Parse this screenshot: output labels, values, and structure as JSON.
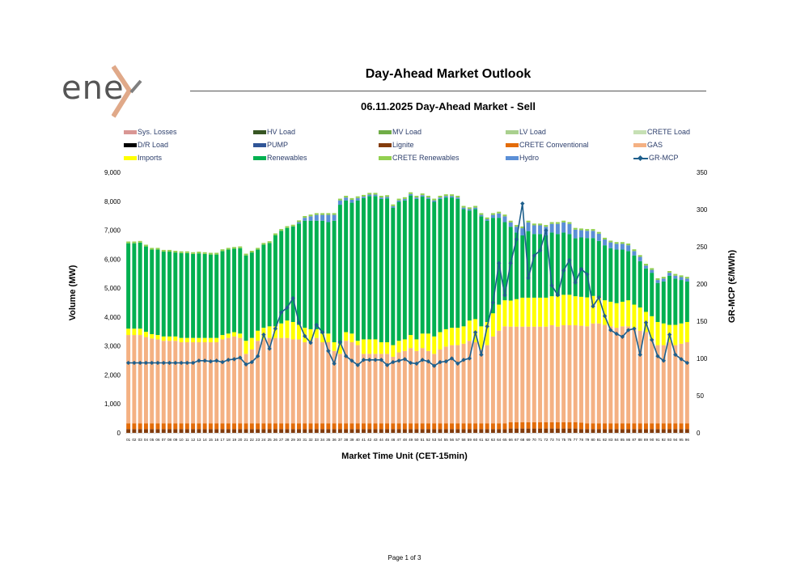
{
  "header": {
    "title": "Day-Ahead Market Outlook",
    "subtitle": "06.11.2025  Day-Ahead Market - Sell",
    "logo_text": "ene"
  },
  "footer": {
    "page": "Page 1 of 3"
  },
  "colors": {
    "losses": "#d99694",
    "hv": "#375623",
    "mv": "#70ad47",
    "lv": "#a9d08e",
    "crete_load": "#c6e0b4",
    "dr": "#000000",
    "pump": "#2f5597",
    "lignite": "#843c0c",
    "crete_conv": "#e36c09",
    "gas": "#f4b183",
    "imports": "#ffff00",
    "renewables": "#00b050",
    "crete_ren": "#92d050",
    "hydro": "#5b8fd6",
    "mcp": "#1e5f8c"
  },
  "legend": [
    {
      "label": "Sys. Losses",
      "key": "losses"
    },
    {
      "label": "HV Load",
      "key": "hv"
    },
    {
      "label": "MV Load",
      "key": "mv"
    },
    {
      "label": "LV Load",
      "key": "lv"
    },
    {
      "label": "CRETE Load",
      "key": "crete_load"
    },
    {
      "label": "D/R Load",
      "key": "dr"
    },
    {
      "label": "PUMP",
      "key": "pump"
    },
    {
      "label": "Lignite",
      "key": "lignite"
    },
    {
      "label": "CRETE Conventional",
      "key": "crete_conv"
    },
    {
      "label": "GAS",
      "key": "gas"
    },
    {
      "label": "Imports",
      "key": "imports"
    },
    {
      "label": "Renewables",
      "key": "renewables"
    },
    {
      "label": "CRETE Renewables",
      "key": "crete_ren"
    },
    {
      "label": "Hydro",
      "key": "hydro"
    },
    {
      "label": "GR-MCP",
      "key": "mcp",
      "line": true
    }
  ],
  "chart_data": {
    "type": "bar",
    "xlabel": "Market Time Unit (CET-15min)",
    "ylabel": "Volume (MW)",
    "y2label": "GR-MCP (€/MWh)",
    "ylim": [
      0,
      9000
    ],
    "y2lim": [
      0,
      350
    ],
    "yticks": [
      "0",
      "1,000",
      "2,000",
      "3,000",
      "4,000",
      "5,000",
      "6,000",
      "7,000",
      "8,000",
      "9,000"
    ],
    "y2ticks": [
      "0",
      "50",
      "100",
      "150",
      "200",
      "250",
      "300",
      "350"
    ],
    "grid": false,
    "legend_position": "top",
    "categories": [
      "01",
      "02",
      "03",
      "04",
      "05",
      "06",
      "07",
      "08",
      "09",
      "10",
      "11",
      "12",
      "13",
      "14",
      "15",
      "16",
      "17",
      "18",
      "19",
      "20",
      "21",
      "22",
      "23",
      "24",
      "25",
      "26",
      "27",
      "28",
      "29",
      "30",
      "31",
      "32",
      "33",
      "34",
      "35",
      "36",
      "37",
      "38",
      "39",
      "40",
      "41",
      "42",
      "43",
      "44",
      "45",
      "46",
      "47",
      "48",
      "49",
      "50",
      "51",
      "52",
      "53",
      "54",
      "55",
      "56",
      "57",
      "58",
      "59",
      "60",
      "61",
      "62",
      "63",
      "64",
      "65",
      "66",
      "67",
      "68",
      "69",
      "70",
      "71",
      "72",
      "73",
      "74",
      "75",
      "76",
      "77",
      "78",
      "79",
      "80",
      "81",
      "82",
      "83",
      "84",
      "85",
      "86",
      "87",
      "88",
      "89",
      "90",
      "91",
      "92",
      "93",
      "94",
      "95",
      "96"
    ],
    "series": [
      {
        "name": "Lignite",
        "stack": true,
        "values": [
          130,
          130,
          130,
          130,
          130,
          130,
          130,
          130,
          130,
          130,
          130,
          130,
          130,
          130,
          130,
          130,
          130,
          130,
          130,
          130,
          130,
          130,
          130,
          130,
          130,
          130,
          130,
          130,
          130,
          130,
          130,
          130,
          130,
          130,
          130,
          130,
          130,
          130,
          130,
          130,
          130,
          130,
          130,
          130,
          130,
          130,
          130,
          130,
          130,
          130,
          130,
          130,
          130,
          130,
          130,
          130,
          130,
          130,
          130,
          130,
          130,
          130,
          130,
          130,
          130,
          150,
          150,
          150,
          150,
          150,
          150,
          150,
          150,
          150,
          150,
          150,
          150,
          130,
          130,
          130,
          130,
          130,
          130,
          130,
          130,
          130,
          130,
          130,
          130,
          130,
          130,
          130,
          130,
          130,
          130,
          130
        ]
      },
      {
        "name": "CRETE Conventional",
        "stack": true,
        "values": [
          200,
          200,
          200,
          200,
          200,
          200,
          200,
          200,
          200,
          200,
          200,
          200,
          200,
          200,
          200,
          200,
          200,
          200,
          200,
          200,
          200,
          200,
          200,
          200,
          200,
          200,
          200,
          200,
          200,
          200,
          200,
          200,
          200,
          200,
          200,
          200,
          200,
          200,
          200,
          200,
          200,
          200,
          200,
          200,
          200,
          200,
          200,
          200,
          200,
          200,
          200,
          200,
          200,
          200,
          200,
          200,
          200,
          200,
          200,
          200,
          200,
          200,
          200,
          200,
          200,
          220,
          220,
          220,
          220,
          220,
          220,
          220,
          220,
          220,
          220,
          220,
          220,
          220,
          200,
          200,
          200,
          200,
          200,
          200,
          200,
          200,
          200,
          200,
          200,
          200,
          200,
          200,
          200,
          200,
          200,
          200
        ]
      },
      {
        "name": "GAS",
        "stack": true,
        "values": [
          3050,
          3050,
          3050,
          2980,
          2930,
          2900,
          2850,
          2850,
          2850,
          2800,
          2800,
          2800,
          2800,
          2800,
          2800,
          2800,
          2900,
          2950,
          3000,
          2950,
          2400,
          2550,
          2850,
          2900,
          2950,
          2950,
          2950,
          2950,
          2900,
          2900,
          2800,
          2850,
          2950,
          2800,
          2800,
          2500,
          2400,
          2850,
          2800,
          2700,
          2400,
          2400,
          2400,
          2400,
          2400,
          2300,
          2450,
          2500,
          2600,
          2500,
          2600,
          2500,
          2400,
          2550,
          2650,
          2700,
          2700,
          2750,
          2850,
          2800,
          2550,
          2700,
          3000,
          3200,
          3350,
          3300,
          3300,
          3300,
          3300,
          3300,
          3300,
          3300,
          3350,
          3300,
          3350,
          3350,
          3350,
          3350,
          3350,
          3450,
          3450,
          3400,
          3350,
          3300,
          3350,
          3350,
          3300,
          3200,
          3150,
          2900,
          2700,
          2700,
          2800,
          2700,
          2750,
          2800
        ]
      },
      {
        "name": "Imports",
        "stack": true,
        "values": [
          220,
          220,
          220,
          180,
          150,
          150,
          150,
          150,
          150,
          150,
          150,
          150,
          150,
          150,
          150,
          150,
          150,
          150,
          150,
          150,
          450,
          400,
          350,
          400,
          400,
          400,
          500,
          600,
          600,
          500,
          500,
          400,
          300,
          300,
          300,
          300,
          350,
          300,
          300,
          150,
          500,
          500,
          500,
          400,
          400,
          400,
          400,
          400,
          450,
          400,
          500,
          600,
          600,
          600,
          600,
          600,
          600,
          600,
          700,
          800,
          800,
          800,
          800,
          900,
          900,
          900,
          950,
          1000,
          1000,
          1000,
          1000,
          1000,
          1000,
          1050,
          1050,
          1050,
          1000,
          1000,
          1000,
          950,
          900,
          850,
          850,
          850,
          850,
          900,
          800,
          800,
          700,
          800,
          800,
          750,
          600,
          700,
          700,
          700
        ]
      },
      {
        "name": "Renewables",
        "stack": true,
        "values": [
          2950,
          2950,
          2970,
          2950,
          2920,
          2950,
          2930,
          2930,
          2900,
          2930,
          2930,
          2900,
          2920,
          2900,
          2880,
          2880,
          2900,
          2900,
          2880,
          2950,
          2950,
          2950,
          2800,
          2870,
          2880,
          3150,
          3200,
          3200,
          3300,
          3500,
          3700,
          3750,
          3750,
          3900,
          3850,
          4200,
          4800,
          4550,
          4520,
          4850,
          4880,
          4950,
          4950,
          4950,
          4970,
          4750,
          4800,
          4800,
          4820,
          4850,
          4730,
          4650,
          4650,
          4600,
          4550,
          4500,
          4450,
          4050,
          3800,
          3800,
          3800,
          3500,
          3300,
          3000,
          2700,
          2550,
          2300,
          2150,
          2300,
          2200,
          2200,
          2150,
          2200,
          2150,
          2150,
          2100,
          2000,
          2050,
          2050,
          2000,
          1950,
          1900,
          1850,
          1850,
          1800,
          1700,
          1700,
          1600,
          1500,
          1500,
          1350,
          1450,
          1700,
          1600,
          1500,
          1400
        ]
      },
      {
        "name": "Hydro",
        "stack": true,
        "values": [
          0,
          0,
          0,
          0,
          0,
          0,
          0,
          0,
          0,
          0,
          0,
          0,
          0,
          0,
          0,
          0,
          0,
          0,
          0,
          0,
          0,
          0,
          0,
          0,
          0,
          0,
          0,
          0,
          0,
          50,
          100,
          150,
          200,
          200,
          250,
          200,
          150,
          100,
          100,
          80,
          50,
          50,
          50,
          50,
          50,
          50,
          50,
          50,
          50,
          50,
          50,
          50,
          50,
          50,
          50,
          50,
          50,
          50,
          50,
          50,
          50,
          50,
          100,
          150,
          200,
          150,
          200,
          250,
          300,
          300,
          300,
          300,
          300,
          350,
          350,
          350,
          300,
          250,
          250,
          250,
          250,
          200,
          200,
          200,
          200,
          200,
          150,
          150,
          100,
          100,
          100,
          100,
          100,
          100,
          100,
          100
        ]
      },
      {
        "name": "CRETE Renewables",
        "stack": true,
        "values": [
          60,
          60,
          60,
          60,
          60,
          60,
          60,
          60,
          60,
          60,
          60,
          60,
          60,
          60,
          60,
          60,
          60,
          60,
          60,
          60,
          60,
          60,
          60,
          60,
          60,
          60,
          60,
          60,
          60,
          60,
          60,
          60,
          60,
          60,
          60,
          60,
          60,
          60,
          60,
          60,
          60,
          60,
          60,
          60,
          60,
          60,
          60,
          60,
          60,
          60,
          60,
          60,
          60,
          60,
          60,
          60,
          60,
          60,
          60,
          60,
          60,
          60,
          60,
          60,
          60,
          60,
          60,
          60,
          60,
          60,
          60,
          60,
          60,
          60,
          60,
          60,
          60,
          60,
          60,
          60,
          60,
          60,
          60,
          60,
          60,
          60,
          60,
          60,
          60,
          60,
          60,
          60,
          60,
          60,
          60,
          60
        ]
      },
      {
        "name": "GR-MCP",
        "axis": "y2",
        "line": true,
        "values": [
          94,
          94,
          94,
          94,
          94,
          94,
          94,
          94,
          94,
          94,
          94,
          94,
          97,
          97,
          96,
          97,
          95,
          98,
          99,
          101,
          92,
          95,
          103,
          132,
          113,
          140,
          162,
          168,
          181,
          148,
          130,
          121,
          145,
          135,
          110,
          93,
          122,
          103,
          97,
          91,
          98,
          98,
          98,
          98,
          91,
          95,
          97,
          99,
          94,
          93,
          98,
          96,
          90,
          95,
          96,
          100,
          93,
          98,
          100,
          135,
          105,
          143,
          175,
          228,
          185,
          228,
          260,
          308,
          208,
          238,
          245,
          272,
          198,
          185,
          218,
          232,
          202,
          220,
          213,
          170,
          182,
          157,
          138,
          133,
          129,
          138,
          140,
          105,
          148,
          125,
          103,
          97,
          132,
          105,
          99,
          94
        ]
      }
    ]
  }
}
